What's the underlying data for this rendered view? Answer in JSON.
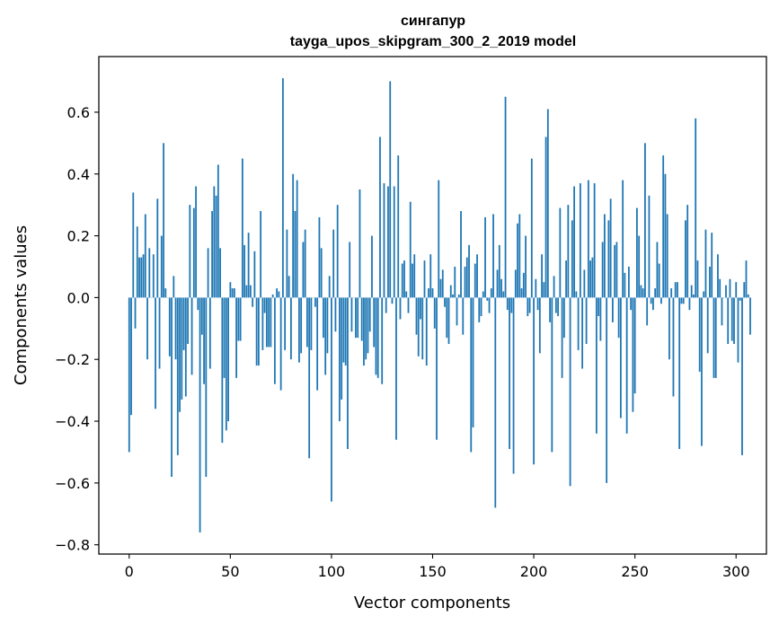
{
  "chart_data": {
    "type": "bar",
    "title": "сингапур",
    "subtitle": "tayga_upos_skipgram_300_2_2019 model",
    "xlabel": "Vector components",
    "ylabel": "Components values",
    "xlim": [
      -15,
      315
    ],
    "ylim": [
      -0.83,
      0.78
    ],
    "xticks": [
      0,
      50,
      100,
      150,
      200,
      250,
      300
    ],
    "yticks": [
      -0.8,
      -0.6,
      -0.4,
      -0.2,
      0.0,
      0.2,
      0.4,
      0.6
    ],
    "ytick_labels": [
      "−0.8",
      "−0.6",
      "−0.4",
      "−0.2",
      "0.0",
      "0.2",
      "0.4",
      "0.6"
    ],
    "grid": false,
    "bar_color": "#1f77b4",
    "values": [
      -0.5,
      -0.38,
      0.34,
      -0.1,
      0.23,
      0.13,
      0.13,
      0.14,
      0.27,
      -0.2,
      0.16,
      0.0,
      0.14,
      -0.36,
      0.32,
      -0.23,
      0.2,
      0.5,
      0.03,
      0.0,
      -0.19,
      -0.58,
      0.07,
      -0.2,
      -0.51,
      -0.37,
      -0.33,
      -0.17,
      -0.32,
      -0.15,
      0.3,
      -0.25,
      0.29,
      0.36,
      -0.04,
      -0.76,
      -0.12,
      -0.28,
      -0.58,
      0.16,
      -0.23,
      0.28,
      0.36,
      0.33,
      0.43,
      0.16,
      -0.47,
      -0.26,
      -0.43,
      -0.4,
      0.05,
      0.03,
      0.03,
      -0.26,
      -0.14,
      -0.14,
      0.45,
      0.17,
      0.04,
      0.21,
      0.04,
      -0.03,
      0.15,
      -0.22,
      -0.22,
      0.28,
      -0.17,
      -0.05,
      -0.16,
      -0.16,
      -0.16,
      0.01,
      -0.28,
      0.03,
      0.02,
      -0.3,
      0.71,
      -0.17,
      0.22,
      0.07,
      -0.2,
      0.4,
      0.28,
      0.38,
      -0.21,
      -0.18,
      0.18,
      0.22,
      -0.16,
      -0.52,
      -0.17,
      0.0,
      -0.03,
      -0.3,
      0.26,
      0.16,
      -0.13,
      -0.25,
      -0.18,
      0.07,
      -0.66,
      0.22,
      -0.11,
      0.3,
      -0.4,
      -0.33,
      -0.21,
      -0.22,
      -0.49,
      0.18,
      -0.11,
      0.0,
      -0.13,
      -0.13,
      0.35,
      -0.14,
      -0.22,
      -0.2,
      -0.18,
      -0.11,
      0.2,
      -0.16,
      -0.25,
      -0.26,
      0.52,
      -0.28,
      0.37,
      -0.05,
      0.36,
      0.7,
      -0.02,
      0.36,
      -0.46,
      0.46,
      -0.07,
      0.11,
      0.12,
      0.02,
      -0.05,
      0.31,
      0.11,
      0.14,
      -0.12,
      -0.19,
      -0.07,
      -0.2,
      0.12,
      -0.22,
      0.03,
      0.14,
      0.03,
      -0.1,
      -0.46,
      0.38,
      0.06,
      0.09,
      -0.03,
      -0.13,
      -0.15,
      0.04,
      0.01,
      0.1,
      -0.09,
      0.01,
      0.28,
      -0.12,
      0.1,
      0.13,
      0.17,
      -0.5,
      -0.42,
      0.11,
      0.14,
      -0.08,
      -0.06,
      0.02,
      0.26,
      -0.01,
      -0.05,
      0.03,
      0.27,
      -0.68,
      0.09,
      0.17,
      0.06,
      0.02,
      0.65,
      -0.04,
      -0.49,
      -0.05,
      -0.57,
      0.09,
      0.24,
      0.27,
      0.03,
      0.08,
      0.2,
      -0.06,
      -0.05,
      0.45,
      -0.54,
      0.06,
      -0.04,
      -0.18,
      0.14,
      0.05,
      0.52,
      0.61,
      -0.08,
      -0.5,
      0.07,
      -0.05,
      -0.06,
      0.29,
      -0.26,
      -0.13,
      0.12,
      0.3,
      -0.61,
      0.25,
      0.36,
      0.02,
      -0.17,
      0.37,
      -0.23,
      0.09,
      -0.15,
      0.38,
      0.12,
      0.13,
      0.37,
      -0.44,
      -0.06,
      -0.14,
      0.18,
      0.27,
      -0.6,
      0.25,
      0.32,
      -0.08,
      0.17,
      0.18,
      -0.13,
      -0.39,
      0.38,
      0.08,
      -0.44,
      0.1,
      -0.04,
      -0.37,
      -0.31,
      0.29,
      0.2,
      0.04,
      0.03,
      0.5,
      -0.09,
      0.33,
      -0.02,
      -0.04,
      0.03,
      0.18,
      0.11,
      -0.02,
      0.46,
      0.4,
      0.27,
      -0.2,
      0.03,
      -0.32,
      0.05,
      0.05,
      -0.49,
      -0.02,
      -0.02,
      0.25,
      0.3,
      -0.04,
      0.04,
      0.01,
      0.58,
      0.12,
      -0.24,
      -0.48,
      0.02,
      0.22,
      -0.18,
      0.1,
      0.21,
      -0.26,
      -0.26,
      0.14,
      0.06,
      -0.09,
      0.0,
      0.04,
      -0.15,
      0.06,
      -0.14,
      -0.15,
      0.05,
      -0.21,
      -0.01,
      -0.51,
      0.05,
      0.12,
      0.01,
      -0.12
    ]
  }
}
